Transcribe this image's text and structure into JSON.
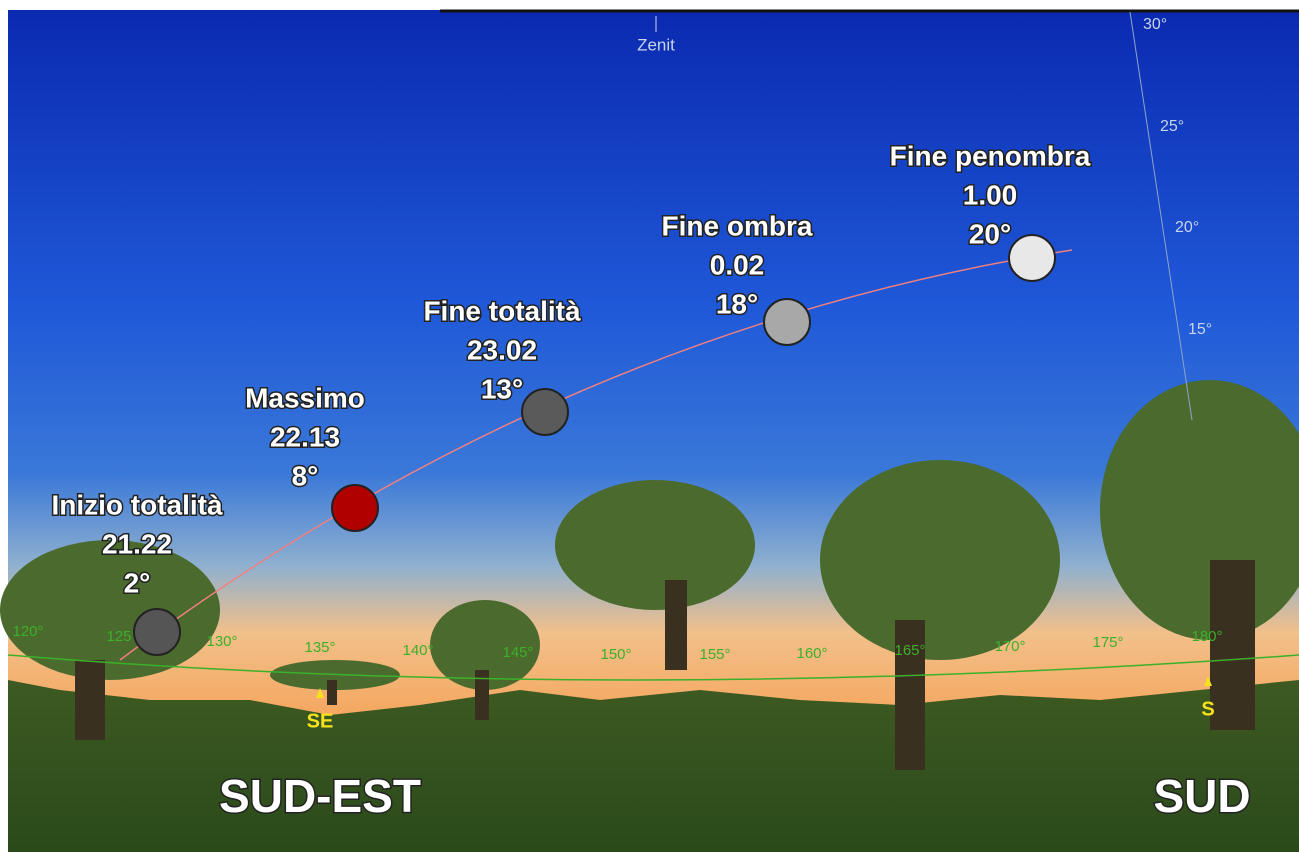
{
  "zenith": "Zenit",
  "altitude_labels": [
    "30°",
    "25°",
    "20°",
    "15°"
  ],
  "azimuth_labels": [
    "120°",
    "125°",
    "130°",
    "135°",
    "140°",
    "145°",
    "150°",
    "155°",
    "160°",
    "165°",
    "170°",
    "175°",
    "180°"
  ],
  "markers": [
    "SE",
    "S"
  ],
  "events": [
    {
      "name": "Inizio totalità",
      "time": "21.22",
      "altitude": "2°"
    },
    {
      "name": "Massimo",
      "time": "22.13",
      "altitude": "8°"
    },
    {
      "name": "Fine totalità",
      "time": "23.02",
      "altitude": "13°"
    },
    {
      "name": "Fine ombra",
      "time": "0.02",
      "altitude": "18°"
    },
    {
      "name": "Fine penombra",
      "time": "1.00",
      "altitude": "20°"
    }
  ],
  "directions": [
    "SUD-EST",
    "SUD"
  ]
}
